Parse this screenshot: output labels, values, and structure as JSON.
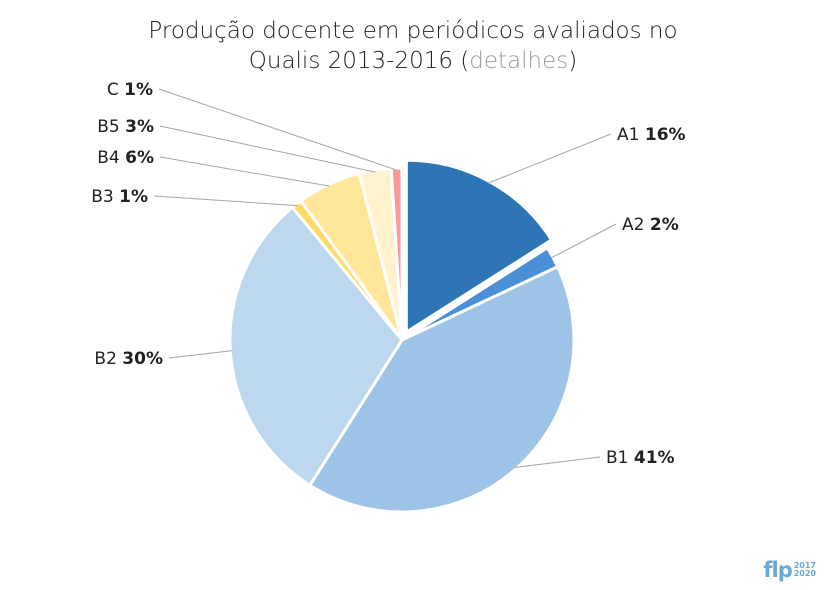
{
  "title": {
    "line1": "Produção docente em periódicos avaliados no",
    "line2_prefix": "Qualis 2013-2016 (",
    "link": "detalhes",
    "line2_suffix": ")"
  },
  "chart_data": {
    "type": "pie",
    "categories": [
      "A1",
      "A2",
      "B1",
      "B2",
      "B3",
      "B4",
      "B5",
      "C"
    ],
    "values": [
      16,
      2,
      41,
      30,
      1,
      6,
      3,
      1
    ],
    "labels": [
      "A1 16%",
      "A2 2%",
      "B1 41%",
      "B2 30%",
      "B3 1%",
      "B4 6%",
      "B5 3%",
      "C 1%"
    ],
    "colors": [
      "#2e75b6",
      "#4a90d9",
      "#9dc3e6",
      "#bdd7ee",
      "#ffd966",
      "#ffe699",
      "#fff2cc",
      "#ff9999"
    ],
    "exploded": "A1",
    "legend": "none"
  },
  "logo": {
    "word": "flp",
    "year_top": "2017",
    "year_bottom": "2020"
  }
}
